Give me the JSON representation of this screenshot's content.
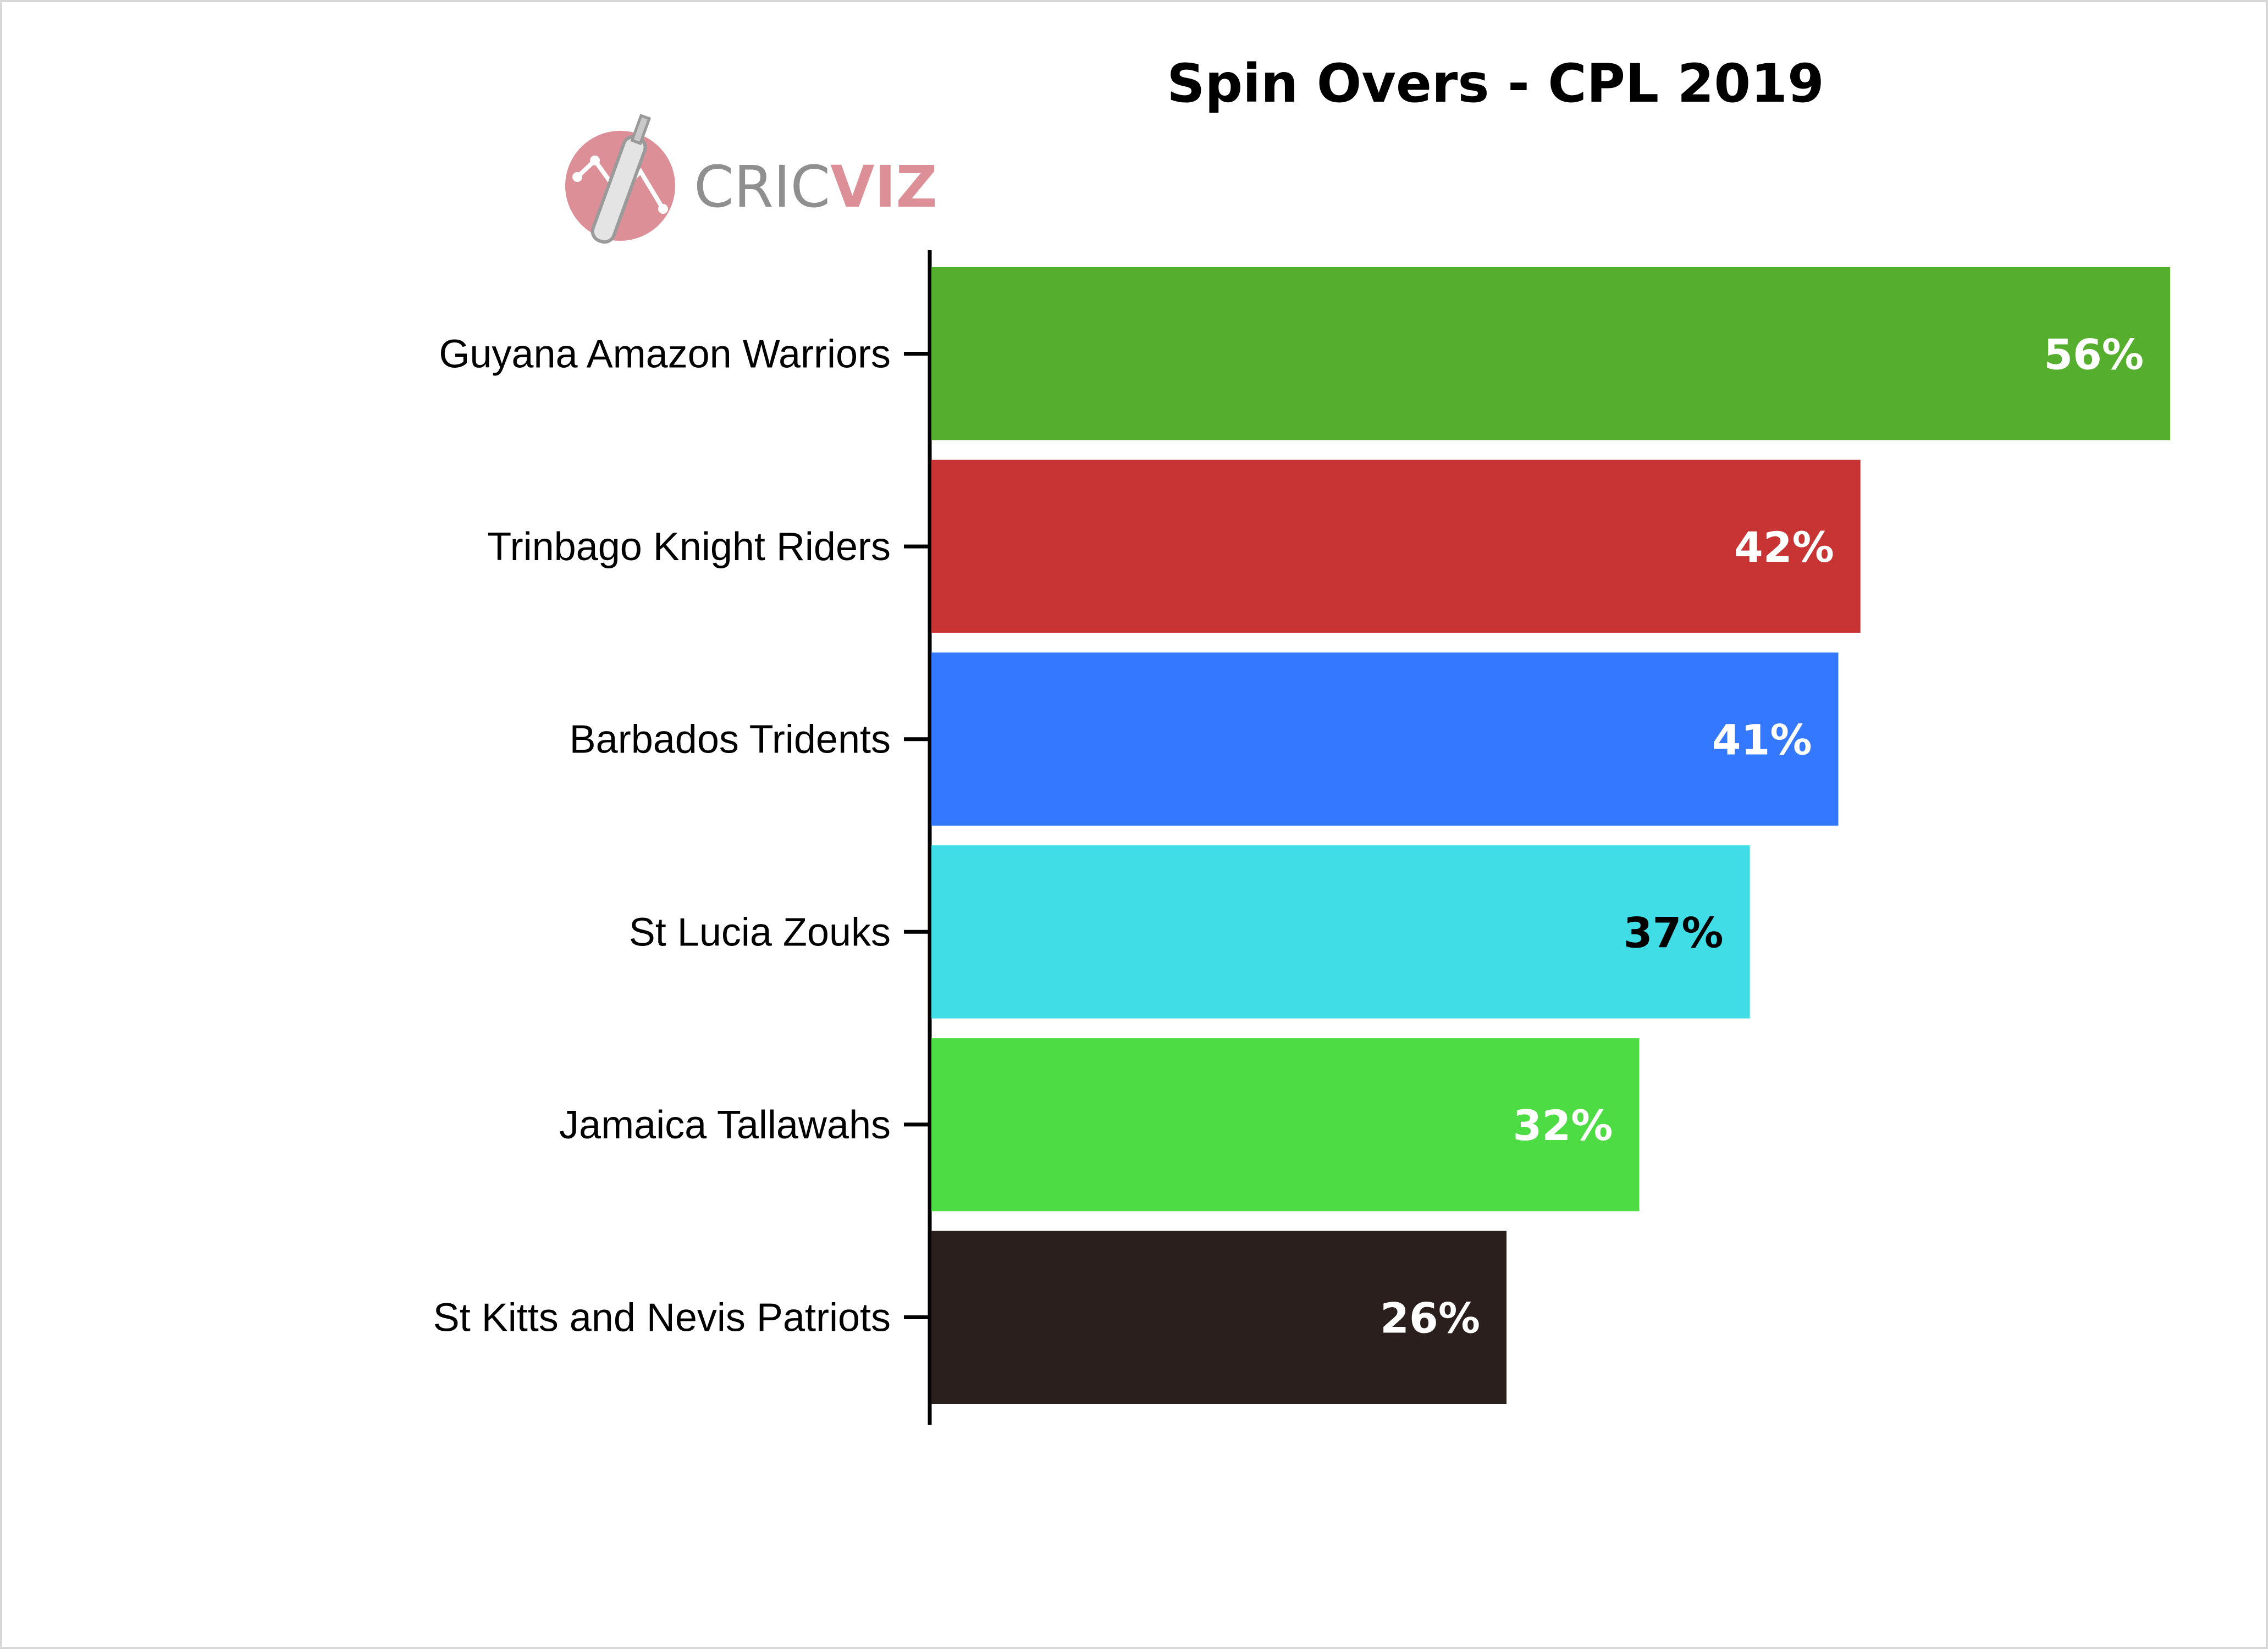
{
  "chart_data": {
    "type": "bar",
    "orientation": "horizontal",
    "title": "Spin Overs - CPL 2019",
    "xlabel": "",
    "ylabel": "",
    "categories": [
      "Guyana Amazon Warriors",
      "Trinbago Knight Riders",
      "Barbados Tridents",
      "St Lucia Zouks",
      "Jamaica Tallawahs",
      "St Kitts and Nevis Patriots"
    ],
    "values": [
      56,
      42,
      41,
      37,
      32,
      26
    ],
    "value_labels": [
      "56%",
      "42%",
      "41%",
      "37%",
      "32%",
      "26%"
    ],
    "bar_colors": [
      "#55ae2e",
      "#c73433",
      "#3478ff",
      "#41dde6",
      "#4ddc44",
      "#2a1f1d"
    ],
    "label_colors": [
      "#ffffff",
      "#ffffff",
      "#ffffff",
      "#000000",
      "#ffffff",
      "#ffffff"
    ],
    "xlim": [
      0,
      56
    ],
    "grid": false,
    "legend": "none"
  },
  "logo": {
    "text_main": "CRIC",
    "text_accent": "VIZ",
    "accent_color": "#dc8f96",
    "text_color": "#8f8f8f",
    "icon": "cricket-bat-icon"
  }
}
